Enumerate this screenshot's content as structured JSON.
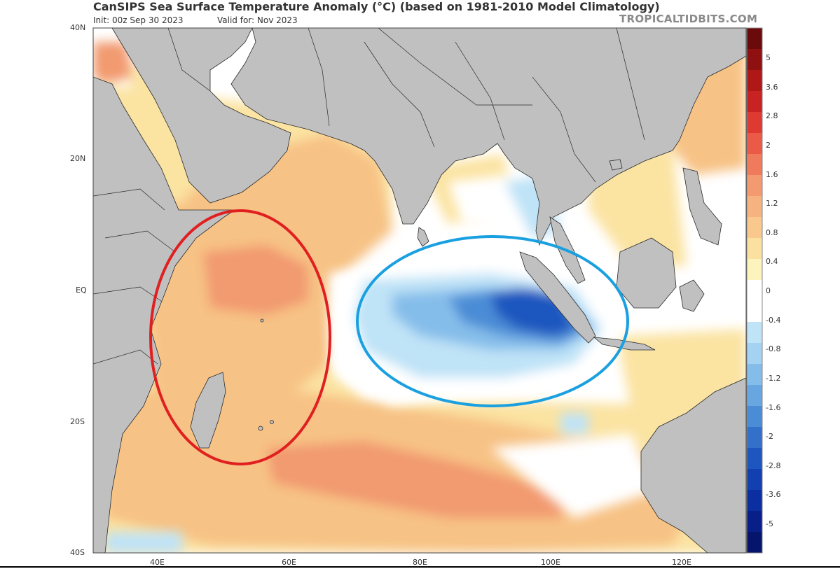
{
  "header": {
    "title": "CanSIPS Sea Surface Temperature Anomaly (°C) (based on 1981-2010 Model Climatology)",
    "init": "Init: 00z Sep 30 2023",
    "valid": "Valid for: Nov 2023",
    "brand": "TROPICALTIDBITS.COM"
  },
  "axes": {
    "lat_labels": [
      "40N",
      "20N",
      "EQ",
      "20S",
      "40S"
    ],
    "lon_labels": [
      "40E",
      "60E",
      "80E",
      "100E",
      "120E"
    ]
  },
  "colorbar": {
    "labels": [
      "5",
      "3.6",
      "2.8",
      "2",
      "1.6",
      "1.2",
      "0.8",
      "0.4",
      "0",
      "-0.4",
      "-0.8",
      "-1.2",
      "-1.6",
      "-2",
      "-2.8",
      "-3.6",
      "-5"
    ],
    "colors": [
      "#6b0a0a",
      "#8f1010",
      "#b01818",
      "#c82222",
      "#de3a32",
      "#ea5a46",
      "#f07a5c",
      "#f49a70",
      "#f6b27f",
      "#f8c88c",
      "#fbe0a0",
      "#fdf3bc",
      "#ffffff",
      "#ffffff",
      "#bfe3f7",
      "#a3d2f2",
      "#85bdea",
      "#67a6e1",
      "#4b8cd6",
      "#3270ca",
      "#1e56bf",
      "#1240b0",
      "#0b2ea0",
      "#081f8a",
      "#06156c"
    ]
  },
  "annotations": {
    "red_ellipse": "west-indian-ocean-warm-region",
    "blue_ellipse": "east-indian-ocean-cool-region",
    "red_color": "#e02020",
    "blue_color": "#1aa0e0"
  },
  "colors": {
    "land": "#c0c0c0",
    "border": "#2a2a2a",
    "warm_light": "#fbe3a2",
    "warm_mid": "#f7c285",
    "warm_strong": "#f29a70",
    "cool_light": "#bfe3f7",
    "cool_mid": "#6fb0e4",
    "cool_strong": "#1848c0"
  }
}
